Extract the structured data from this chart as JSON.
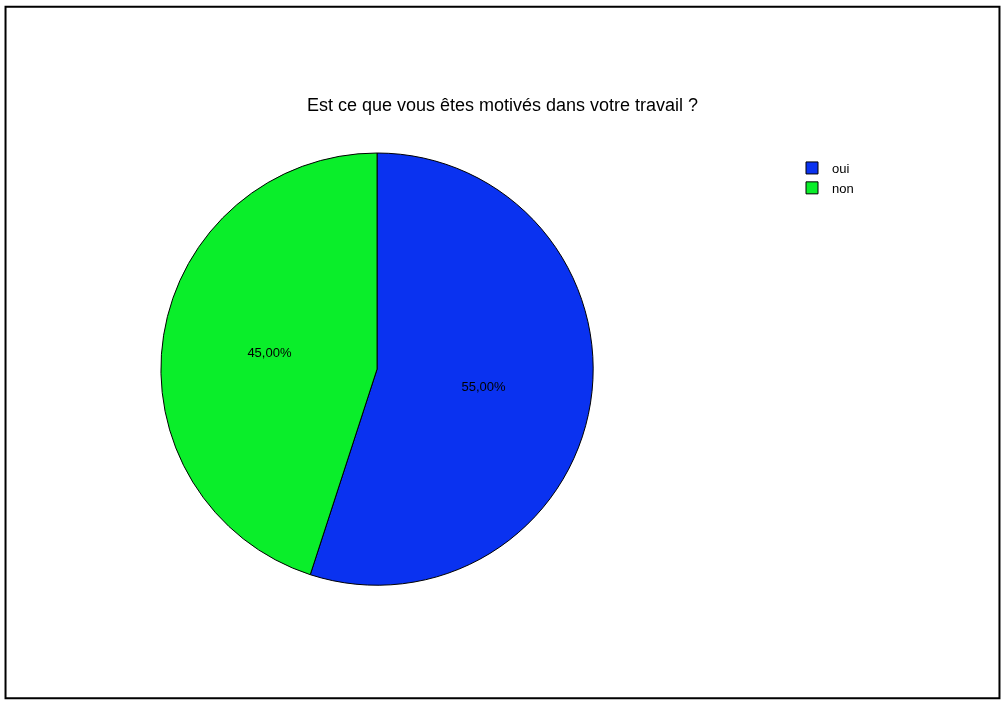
{
  "chart_data": {
    "type": "pie",
    "title": "Est ce que vous êtes motivés dans votre travail ?",
    "categories": [
      "oui",
      "non"
    ],
    "values": [
      55,
      45
    ],
    "colors": [
      "#0a32f0",
      "#0aee2a"
    ],
    "value_labels": [
      "55,00%",
      "45,00%"
    ],
    "legend": "top right"
  }
}
